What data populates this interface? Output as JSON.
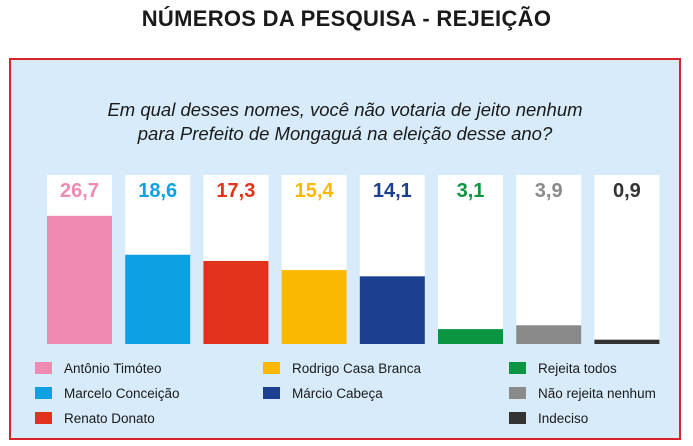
{
  "header": {
    "title": "NÚMEROS DA PESQUISA - REJEIÇÃO"
  },
  "question": {
    "line1": "Em qual desses nomes, você não votaria de jeito nenhum",
    "line2": "para Prefeito de Mongaguá na eleição desse ano?"
  },
  "chart_data": {
    "type": "bar",
    "title": "Em qual desses nomes, você não votaria de jeito nenhum para Prefeito de Mongaguá na eleição desse ano?",
    "xlabel": "",
    "ylabel": "",
    "ylim": [
      0,
      30
    ],
    "grid": false,
    "legend_position": "bottom",
    "categories": [
      "Antônio Timóteo",
      "Marcelo Conceição",
      "Renato Donato",
      "Rodrigo Casa Branca",
      "Márcio Cabeça",
      "Rejeita todos",
      "Não rejeita nenhum",
      "Indeciso"
    ],
    "values": [
      26.7,
      18.6,
      17.3,
      15.4,
      14.1,
      3.1,
      3.9,
      0.9
    ],
    "value_labels": [
      "26,7",
      "18,6",
      "17,3",
      "15,4",
      "14,1",
      "3,1",
      "3,9",
      "0,9"
    ],
    "colors": [
      "#f08ab3",
      "#0da1e2",
      "#e3321b",
      "#fbb800",
      "#1c3f8f",
      "#0c9541",
      "#8a8a8a",
      "#333333"
    ]
  },
  "legend": {
    "items": [
      {
        "label": "Antônio Timóteo",
        "color": "#f08ab3"
      },
      {
        "label": "Marcelo Conceição",
        "color": "#0da1e2"
      },
      {
        "label": "Renato Donato",
        "color": "#e3321b"
      },
      {
        "label": "Rodrigo Casa Branca",
        "color": "#fbb800"
      },
      {
        "label": "Márcio Cabeça",
        "color": "#1c3f8f"
      },
      {
        "label": "Rejeita todos",
        "color": "#0c9541"
      },
      {
        "label": "Não rejeita nenhum",
        "color": "#8a8a8a"
      },
      {
        "label": "Indeciso",
        "color": "#333333"
      }
    ]
  }
}
